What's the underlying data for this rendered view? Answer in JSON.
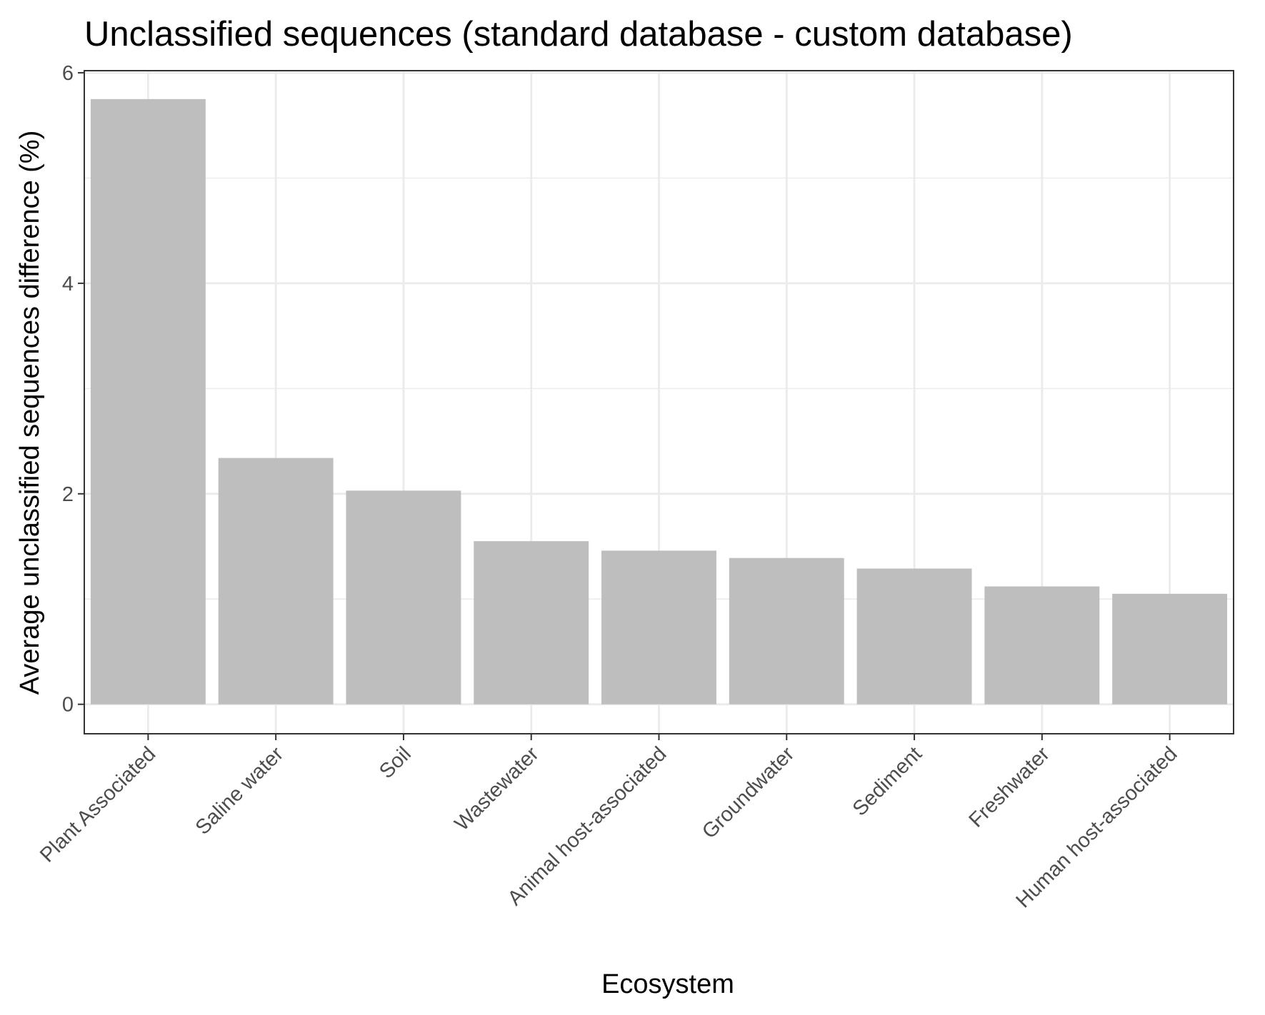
{
  "chart_data": {
    "type": "bar",
    "title": "Unclassified sequences (standard database - custom database)",
    "xlabel": "Ecosystem",
    "ylabel": "Average unclassified sequences difference (%)",
    "categories": [
      "Plant Associated",
      "Saline water",
      "Soil",
      "Wastewater",
      "Animal host-associated",
      "Groundwater",
      "Sediment",
      "Freshwater",
      "Human host-associated"
    ],
    "values": [
      5.75,
      2.34,
      2.03,
      1.55,
      1.46,
      1.39,
      1.29,
      1.12,
      1.05
    ],
    "ylim": [
      -0.28,
      6.02
    ],
    "yticks": [
      0,
      2,
      4,
      6
    ],
    "grid": true,
    "bar_color": "#bebebe",
    "gridline_color": "#ebebeb",
    "panel_border_color": "#333333",
    "tick_label_color": "#4d4d4d"
  }
}
